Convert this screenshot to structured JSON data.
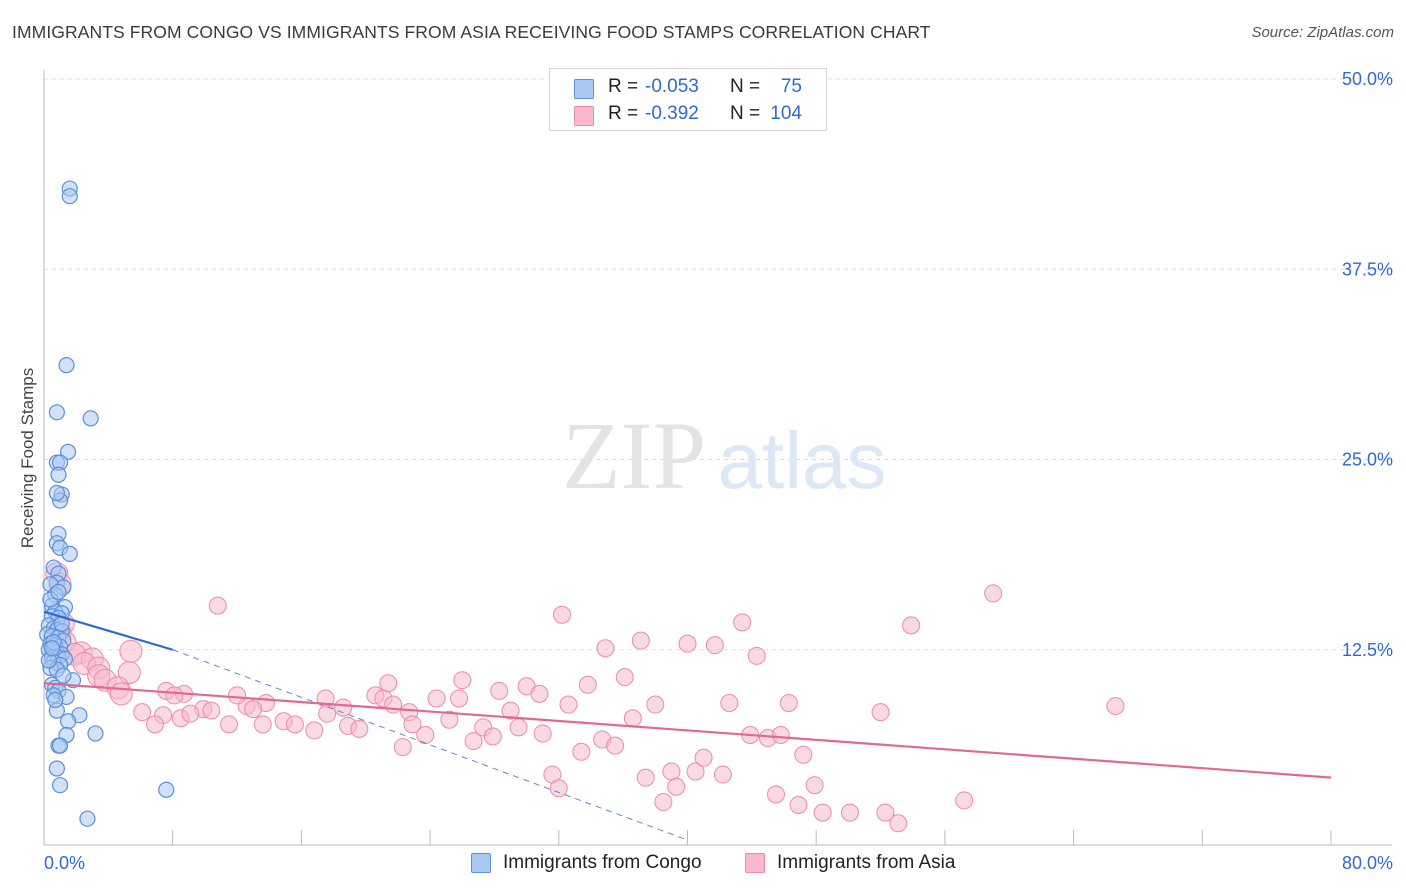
{
  "title": "IMMIGRANTS FROM CONGO VS IMMIGRANTS FROM ASIA RECEIVING FOOD STAMPS CORRELATION CHART",
  "source": "Source: ZipAtlas.com",
  "watermark": {
    "zip": "ZIP",
    "atlas": "atlas"
  },
  "legend": {
    "r_label": "R =",
    "n_label": "N =",
    "series": [
      {
        "r": "-0.053",
        "n": "75"
      },
      {
        "r": "-0.392",
        "n": "104"
      }
    ]
  },
  "bottom_legend": [
    "Immigrants from Congo",
    "Immigrants from Asia"
  ],
  "chart_data": {
    "type": "scatter",
    "title": "IMMIGRANTS FROM CONGO VS IMMIGRANTS FROM ASIA RECEIVING FOOD STAMPS CORRELATION CHART",
    "xlabel": "",
    "ylabel": "Receiving Food Stamps",
    "xlim": [
      0,
      80
    ],
    "ylim": [
      0,
      50
    ],
    "x_tick_labels": [
      "0.0%",
      "80.0%"
    ],
    "y_tick_values": [
      12.5,
      25.0,
      37.5,
      50.0
    ],
    "y_tick_labels": [
      "12.5%",
      "25.0%",
      "37.5%",
      "50.0%"
    ],
    "grid": true,
    "colors": {
      "congo_fill": "#a9c8f2",
      "congo_stroke": "#5b8fd8",
      "congo_line": "#2f6ad0",
      "asia_fill": "#f8b9cc",
      "asia_stroke": "#ea8bab",
      "asia_line": "#e06892",
      "axis_text": "#2f6ad0"
    },
    "series": [
      {
        "name": "Immigrants from Congo",
        "r": -0.053,
        "n": 75,
        "trend": {
          "x": [
            0,
            8
          ],
          "y": [
            15.0,
            12.5
          ],
          "dashed_to": [
            40,
            0
          ]
        },
        "points": [
          [
            1.6,
            42.8
          ],
          [
            1.6,
            42.3
          ],
          [
            1.4,
            31.2
          ],
          [
            0.8,
            28.1
          ],
          [
            2.9,
            27.7
          ],
          [
            1.5,
            25.5
          ],
          [
            0.8,
            24.8
          ],
          [
            1.0,
            24.8
          ],
          [
            0.9,
            24.0
          ],
          [
            1.1,
            22.7
          ],
          [
            1.0,
            22.3
          ],
          [
            0.8,
            22.8
          ],
          [
            0.9,
            20.1
          ],
          [
            0.8,
            19.5
          ],
          [
            1.0,
            19.2
          ],
          [
            1.6,
            18.8
          ],
          [
            0.6,
            17.9
          ],
          [
            0.9,
            17.5
          ],
          [
            0.8,
            16.9
          ],
          [
            1.2,
            16.6
          ],
          [
            0.4,
            16.8
          ],
          [
            0.7,
            16.1
          ],
          [
            0.5,
            15.4
          ],
          [
            1.3,
            15.3
          ],
          [
            0.7,
            15.0
          ],
          [
            1.1,
            14.9
          ],
          [
            0.5,
            14.7
          ],
          [
            0.9,
            14.6
          ],
          [
            0.3,
            14.1
          ],
          [
            0.6,
            13.9
          ],
          [
            0.8,
            13.8
          ],
          [
            1.1,
            13.7
          ],
          [
            0.2,
            13.5
          ],
          [
            0.5,
            13.4
          ],
          [
            0.9,
            13.3
          ],
          [
            1.2,
            13.1
          ],
          [
            0.4,
            12.9
          ],
          [
            0.7,
            12.8
          ],
          [
            1.0,
            12.7
          ],
          [
            0.3,
            12.5
          ],
          [
            0.6,
            12.4
          ],
          [
            0.8,
            12.3
          ],
          [
            1.1,
            12.2
          ],
          [
            0.5,
            12.0
          ],
          [
            0.9,
            12.0
          ],
          [
            1.3,
            11.9
          ],
          [
            0.6,
            11.7
          ],
          [
            1.0,
            11.5
          ],
          [
            0.4,
            11.3
          ],
          [
            0.8,
            11.2
          ],
          [
            1.8,
            10.5
          ],
          [
            0.5,
            10.2
          ],
          [
            0.7,
            10.0
          ],
          [
            0.9,
            9.8
          ],
          [
            0.6,
            9.5
          ],
          [
            1.4,
            9.4
          ],
          [
            0.8,
            8.5
          ],
          [
            2.2,
            8.2
          ],
          [
            1.5,
            7.8
          ],
          [
            3.2,
            7.0
          ],
          [
            1.4,
            6.9
          ],
          [
            0.9,
            6.2
          ],
          [
            1.0,
            6.2
          ],
          [
            0.8,
            4.7
          ],
          [
            1.0,
            3.6
          ],
          [
            7.6,
            3.3
          ],
          [
            2.7,
            1.4
          ],
          [
            0.7,
            9.2
          ],
          [
            1.2,
            10.8
          ],
          [
            0.4,
            15.8
          ],
          [
            0.6,
            13.0
          ],
          [
            1.1,
            14.2
          ],
          [
            0.3,
            11.8
          ],
          [
            0.9,
            16.3
          ],
          [
            0.5,
            12.6
          ]
        ]
      },
      {
        "name": "Immigrants from Asia",
        "r": -0.392,
        "n": 104,
        "trend": {
          "x": [
            0,
            80
          ],
          "y": [
            10.3,
            4.1
          ]
        },
        "points": [
          [
            0.8,
            17.5
          ],
          [
            1.0,
            16.8
          ],
          [
            1.2,
            14.2
          ],
          [
            1.0,
            13.6
          ],
          [
            1.3,
            13.0
          ],
          [
            2.3,
            12.3
          ],
          [
            1.9,
            12.2
          ],
          [
            3.0,
            11.9
          ],
          [
            2.5,
            11.6
          ],
          [
            3.4,
            11.3
          ],
          [
            5.3,
            11.0
          ],
          [
            3.4,
            10.8
          ],
          [
            5.4,
            12.4
          ],
          [
            3.8,
            10.5
          ],
          [
            4.6,
            10.0
          ],
          [
            4.8,
            9.6
          ],
          [
            7.6,
            9.8
          ],
          [
            8.7,
            9.6
          ],
          [
            10.8,
            15.4
          ],
          [
            8.1,
            9.5
          ],
          [
            9.9,
            8.6
          ],
          [
            7.4,
            8.2
          ],
          [
            8.5,
            8.0
          ],
          [
            6.1,
            8.4
          ],
          [
            6.9,
            7.6
          ],
          [
            9.1,
            8.3
          ],
          [
            10.4,
            8.5
          ],
          [
            11.5,
            7.6
          ],
          [
            12.6,
            8.8
          ],
          [
            13.8,
            9.0
          ],
          [
            13.0,
            8.6
          ],
          [
            12.0,
            9.5
          ],
          [
            13.6,
            7.6
          ],
          [
            14.9,
            7.8
          ],
          [
            15.6,
            7.6
          ],
          [
            16.8,
            7.2
          ],
          [
            17.5,
            9.3
          ],
          [
            17.6,
            8.3
          ],
          [
            18.6,
            8.7
          ],
          [
            18.9,
            7.5
          ],
          [
            19.6,
            7.3
          ],
          [
            20.6,
            9.5
          ],
          [
            21.1,
            9.3
          ],
          [
            21.7,
            8.9
          ],
          [
            22.7,
            8.4
          ],
          [
            21.4,
            10.3
          ],
          [
            22.3,
            6.1
          ],
          [
            22.9,
            7.6
          ],
          [
            23.7,
            6.9
          ],
          [
            24.4,
            9.3
          ],
          [
            25.2,
            7.9
          ],
          [
            25.8,
            9.3
          ],
          [
            26.0,
            10.5
          ],
          [
            26.7,
            6.5
          ],
          [
            27.3,
            7.4
          ],
          [
            27.9,
            6.8
          ],
          [
            28.3,
            9.8
          ],
          [
            29.0,
            8.5
          ],
          [
            29.5,
            7.4
          ],
          [
            30.0,
            10.1
          ],
          [
            30.8,
            9.6
          ],
          [
            31.0,
            7.0
          ],
          [
            31.6,
            4.3
          ],
          [
            32.0,
            3.4
          ],
          [
            32.2,
            14.8
          ],
          [
            32.6,
            8.9
          ],
          [
            33.4,
            5.8
          ],
          [
            33.8,
            10.2
          ],
          [
            34.7,
            6.6
          ],
          [
            34.9,
            12.6
          ],
          [
            35.5,
            6.2
          ],
          [
            36.1,
            10.7
          ],
          [
            36.6,
            8.0
          ],
          [
            37.1,
            13.1
          ],
          [
            37.4,
            4.1
          ],
          [
            38.0,
            8.9
          ],
          [
            38.5,
            2.5
          ],
          [
            39.0,
            4.5
          ],
          [
            39.3,
            3.5
          ],
          [
            40.0,
            12.9
          ],
          [
            40.5,
            4.5
          ],
          [
            41.0,
            5.4
          ],
          [
            41.7,
            12.8
          ],
          [
            42.2,
            4.3
          ],
          [
            42.6,
            9.0
          ],
          [
            43.4,
            14.3
          ],
          [
            43.9,
            6.9
          ],
          [
            44.3,
            12.1
          ],
          [
            45.0,
            6.7
          ],
          [
            45.5,
            3.0
          ],
          [
            45.8,
            6.9
          ],
          [
            46.3,
            9.0
          ],
          [
            46.9,
            2.3
          ],
          [
            47.2,
            5.6
          ],
          [
            47.9,
            3.6
          ],
          [
            48.4,
            1.8
          ],
          [
            50.1,
            1.8
          ],
          [
            52.0,
            8.4
          ],
          [
            52.3,
            1.8
          ],
          [
            53.1,
            1.1
          ],
          [
            53.9,
            14.1
          ],
          [
            57.2,
            2.6
          ],
          [
            59.0,
            16.2
          ],
          [
            66.6,
            8.8
          ]
        ]
      }
    ]
  }
}
